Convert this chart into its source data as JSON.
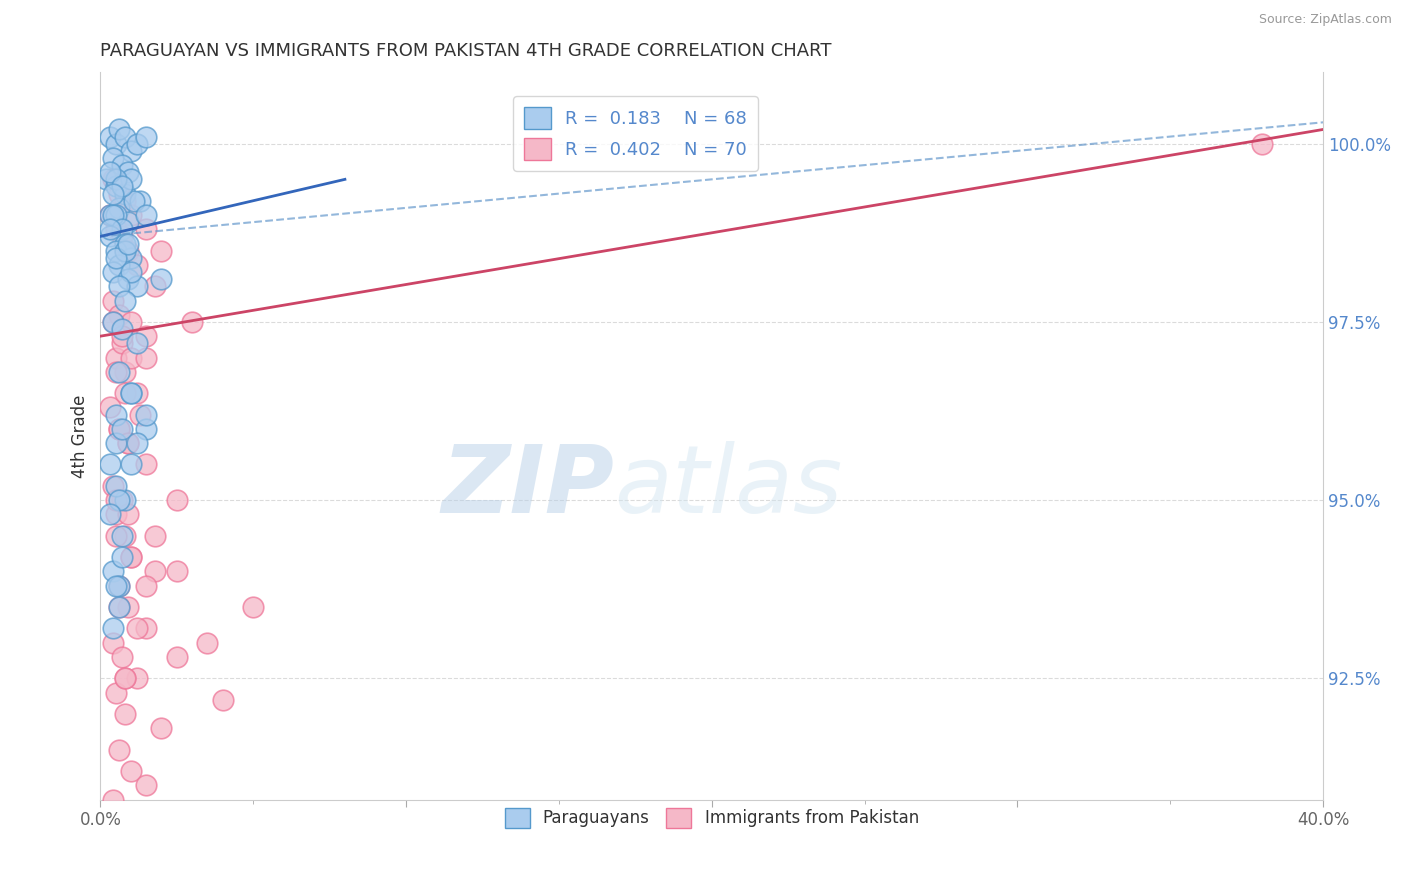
{
  "title": "PARAGUAYAN VS IMMIGRANTS FROM PAKISTAN 4TH GRADE CORRELATION CHART",
  "source": "Source: ZipAtlas.com",
  "ylabel_label": "4th Grade",
  "xlim": [
    0.0,
    40.0
  ],
  "ylim": [
    90.8,
    101.0
  ],
  "yticks": [
    92.5,
    95.0,
    97.5,
    100.0
  ],
  "ytick_labels": [
    "92.5%",
    "95.0%",
    "97.5%",
    "100.0%"
  ],
  "xticks": [
    0.0,
    10.0,
    20.0,
    30.0,
    40.0
  ],
  "xtick_labels": [
    "0.0%",
    "",
    "",
    "",
    "40.0%"
  ],
  "blue_R": 0.183,
  "blue_N": 68,
  "pink_R": 0.402,
  "pink_N": 70,
  "blue_color": "#aaccee",
  "pink_color": "#f5b8c8",
  "blue_edge": "#5599cc",
  "pink_edge": "#ee7799",
  "blue_label": "Paraguayans",
  "pink_label": "Immigrants from Pakistan",
  "watermark_zip": "ZIP",
  "watermark_atlas": "atlas",
  "background_color": "#ffffff",
  "blue_x": [
    0.3,
    0.5,
    0.6,
    0.8,
    1.0,
    1.2,
    1.5,
    0.4,
    0.7,
    0.9,
    0.2,
    0.5,
    0.8,
    1.0,
    1.3,
    0.3,
    0.6,
    0.9,
    0.5,
    1.1,
    0.4,
    0.7,
    0.3,
    0.8,
    0.5,
    1.0,
    0.6,
    0.4,
    0.9,
    1.2,
    0.5,
    0.3,
    0.7,
    1.5,
    0.4,
    0.8,
    0.5,
    0.9,
    0.3,
    1.0,
    0.6,
    0.8,
    2.0,
    0.4,
    0.7,
    1.2,
    0.6,
    1.0,
    0.5,
    1.5,
    0.3,
    0.8,
    0.5,
    0.7,
    0.4,
    0.6,
    1.0,
    0.7,
    1.0,
    0.5,
    0.6,
    0.3,
    1.5,
    1.2,
    0.7,
    0.5,
    0.6,
    0.4
  ],
  "blue_y": [
    100.1,
    100.0,
    100.2,
    100.1,
    99.9,
    100.0,
    100.1,
    99.8,
    99.7,
    99.6,
    99.5,
    99.4,
    99.3,
    99.5,
    99.2,
    99.0,
    99.1,
    98.9,
    99.0,
    99.2,
    99.0,
    98.8,
    98.7,
    98.6,
    98.5,
    98.4,
    98.3,
    98.2,
    98.1,
    98.0,
    99.5,
    99.6,
    99.4,
    99.0,
    99.3,
    98.5,
    98.4,
    98.6,
    98.8,
    98.2,
    98.0,
    97.8,
    98.1,
    97.5,
    97.4,
    97.2,
    96.8,
    96.5,
    96.2,
    96.0,
    95.5,
    95.0,
    95.8,
    94.5,
    94.0,
    93.8,
    96.5,
    96.0,
    95.5,
    95.2,
    95.0,
    94.8,
    96.2,
    95.8,
    94.2,
    93.8,
    93.5,
    93.2
  ],
  "pink_x": [
    0.4,
    0.6,
    0.8,
    1.0,
    1.5,
    2.0,
    0.3,
    0.5,
    0.7,
    0.9,
    1.2,
    1.8,
    0.4,
    0.6,
    1.0,
    1.5,
    0.5,
    0.8,
    1.2,
    0.3,
    0.6,
    0.9,
    0.4,
    0.7,
    1.0,
    0.5,
    0.8,
    1.3,
    0.6,
    0.9,
    1.5,
    0.4,
    0.7,
    2.5,
    0.5,
    0.8,
    1.0,
    1.8,
    0.6,
    0.9,
    1.5,
    0.4,
    0.7,
    1.2,
    0.5,
    0.8,
    2.0,
    0.6,
    1.0,
    1.5,
    0.4,
    0.8,
    3.5,
    0.5,
    1.0,
    1.5,
    0.6,
    1.2,
    2.5,
    0.8,
    4.0,
    0.5,
    0.9,
    1.8,
    2.5,
    5.0,
    0.7,
    1.5,
    3.0,
    38.0
  ],
  "pink_y": [
    99.5,
    99.3,
    99.2,
    99.0,
    98.8,
    98.5,
    99.0,
    98.8,
    98.7,
    98.5,
    98.3,
    98.0,
    97.8,
    97.6,
    97.5,
    97.3,
    97.0,
    96.8,
    96.5,
    96.3,
    96.0,
    95.8,
    97.5,
    97.2,
    97.0,
    96.8,
    96.5,
    96.2,
    96.0,
    95.8,
    95.5,
    95.2,
    95.0,
    95.0,
    94.8,
    94.5,
    94.2,
    94.0,
    93.8,
    93.5,
    93.2,
    93.0,
    92.8,
    92.5,
    92.3,
    92.0,
    91.8,
    91.5,
    91.2,
    91.0,
    90.8,
    92.5,
    93.0,
    94.5,
    94.2,
    93.8,
    93.5,
    93.2,
    92.8,
    92.5,
    92.2,
    95.0,
    94.8,
    94.5,
    94.0,
    93.5,
    97.3,
    97.0,
    97.5,
    100.0
  ],
  "blue_trendline_x": [
    0.0,
    8.0
  ],
  "blue_trendline_y": [
    98.7,
    99.5
  ],
  "pink_trendline_x": [
    0.0,
    40.0
  ],
  "pink_trendline_y": [
    97.3,
    100.2
  ]
}
